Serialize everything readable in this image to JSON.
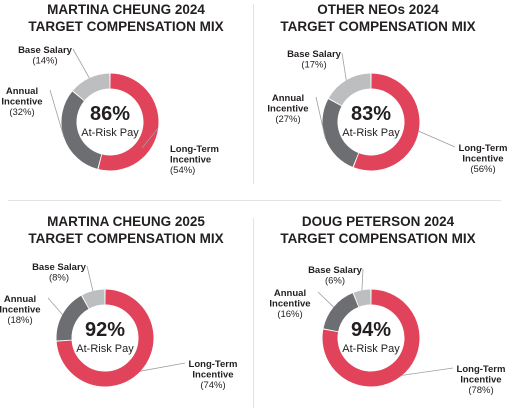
{
  "chart_data": [
    {
      "type": "pie",
      "title": "MARTINA CHEUNG 2024\nTARGET COMPENSATION MIX",
      "center_value": "86%",
      "center_label": "At-Risk Pay",
      "slices": [
        {
          "label": "Long-Term\nIncentive",
          "pct_text": "(54%)",
          "value": 54,
          "color": "#e0435a"
        },
        {
          "label": "Annual\nIncentive",
          "pct_text": "(32%)",
          "value": 32,
          "color": "#6d6e71"
        },
        {
          "label": "Base Salary",
          "pct_text": "(14%)",
          "value": 14,
          "color": "#bcbec0"
        }
      ]
    },
    {
      "type": "pie",
      "title": "OTHER NEOs 2024\nTARGET COMPENSATION MIX",
      "center_value": "83%",
      "center_label": "At-Risk Pay",
      "slices": [
        {
          "label": "Long-Term\nIncentive",
          "pct_text": "(56%)",
          "value": 56,
          "color": "#e0435a"
        },
        {
          "label": "Annual\nIncentive",
          "pct_text": "(27%)",
          "value": 27,
          "color": "#6d6e71"
        },
        {
          "label": "Base Salary",
          "pct_text": "(17%)",
          "value": 17,
          "color": "#bcbec0"
        }
      ]
    },
    {
      "type": "pie",
      "title": "MARTINA CHEUNG 2025\nTARGET COMPENSATION MIX",
      "center_value": "92%",
      "center_label": "At-Risk Pay",
      "slices": [
        {
          "label": "Long-Term\nIncentive",
          "pct_text": "(74%)",
          "value": 74,
          "color": "#e0435a"
        },
        {
          "label": "Annual\nIncentive",
          "pct_text": "(18%)",
          "value": 18,
          "color": "#6d6e71"
        },
        {
          "label": "Base Salary",
          "pct_text": "(8%)",
          "value": 8,
          "color": "#bcbec0"
        }
      ]
    },
    {
      "type": "pie",
      "title": "DOUG PETERSON 2024\nTARGET COMPENSATION MIX",
      "center_value": "94%",
      "center_label": "At-Risk Pay",
      "slices": [
        {
          "label": "Long-Term\nIncentive",
          "pct_text": "(78%)",
          "value": 78,
          "color": "#e0435a"
        },
        {
          "label": "Annual\nIncentive",
          "pct_text": "(16%)",
          "value": 16,
          "color": "#6d6e71"
        },
        {
          "label": "Base Salary",
          "pct_text": "(6%)",
          "value": 6,
          "color": "#bcbec0"
        }
      ]
    }
  ]
}
